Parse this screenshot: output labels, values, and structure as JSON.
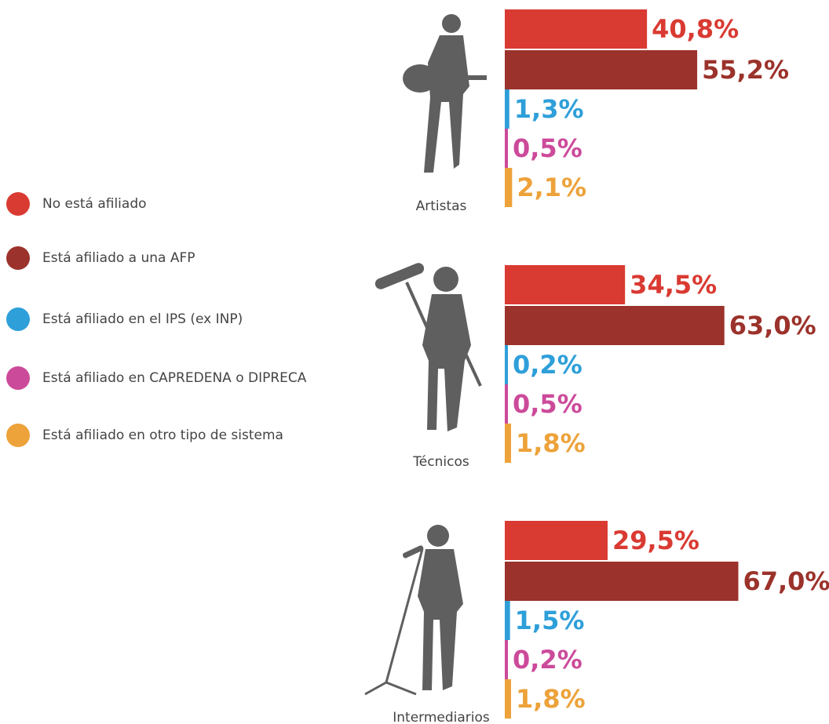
{
  "chart_data": {
    "type": "bar",
    "categories": [
      "Artistas",
      "Técnicos",
      "Intermediarios"
    ],
    "series": [
      {
        "name": "No está afiliado",
        "color": "#d93a32",
        "values": [
          40.8,
          34.5,
          29.5
        ],
        "value_labels": [
          "40,8%",
          "34,5%",
          "29,5%"
        ]
      },
      {
        "name": "Está afiliado a una AFP",
        "color": "#9b322b",
        "values": [
          55.2,
          63.0,
          67.0
        ],
        "value_labels": [
          "55,2%",
          "63,0%",
          "67,0%"
        ]
      },
      {
        "name": "Está afiliado en el IPS (ex INP)",
        "color": "#2e9fd9",
        "values": [
          1.3,
          0.2,
          1.5
        ],
        "value_labels": [
          "1,3%",
          "0,2%",
          "1,5%"
        ]
      },
      {
        "name": "Está afiliado en CAPREDENA o DIPRECA",
        "color": "#cc4a9a",
        "values": [
          0.5,
          0.5,
          0.2
        ],
        "value_labels": [
          "0,5%",
          "0,5%",
          "0,2%"
        ]
      },
      {
        "name": "Está afiliado en otro tipo de sistema",
        "color": "#eda23a",
        "values": [
          2.1,
          1.8,
          1.8
        ],
        "value_labels": [
          "2,1%",
          "1,8%",
          "1,8%"
        ]
      }
    ],
    "legend": "left"
  }
}
